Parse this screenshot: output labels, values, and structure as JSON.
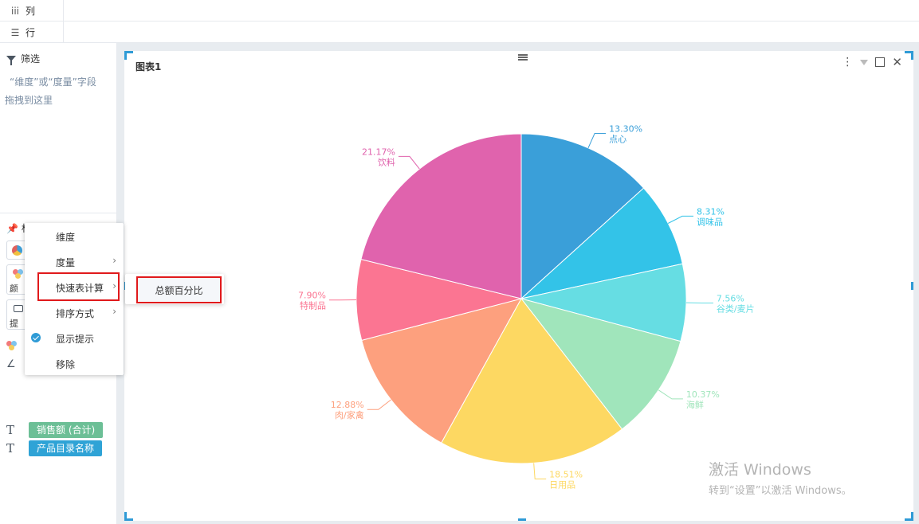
{
  "shelves": {
    "columns": {
      "icon": "iii",
      "label": "列"
    },
    "rows": {
      "icon": "☰",
      "label": "行"
    }
  },
  "filter": {
    "title": "筛选",
    "hint_line1": "“维度”或“度量”字段",
    "hint_line2": "拖拽到这里"
  },
  "marks": {
    "title_fragment": "标",
    "color_sub": "颜",
    "tip_sub": "提",
    "fields": [
      {
        "icon": "T",
        "label": "销售额 (合计)",
        "color": "#6cbf96"
      },
      {
        "icon": "T",
        "label": "产品目录名称",
        "color": "#2fa3d6"
      }
    ]
  },
  "chart": {
    "title": "图表1"
  },
  "context_menu": {
    "items": [
      {
        "label": "维度",
        "submenu": false,
        "checked": false
      },
      {
        "label": "度量",
        "submenu": true,
        "checked": false
      },
      {
        "label": "快速表计算",
        "submenu": true,
        "checked": false
      },
      {
        "label": "排序方式",
        "submenu": true,
        "checked": false
      },
      {
        "label": "显示提示",
        "submenu": false,
        "checked": true
      },
      {
        "label": "移除",
        "submenu": false,
        "checked": false
      }
    ],
    "submenu_item": "总额百分比"
  },
  "chart_data": {
    "type": "pie",
    "title": "",
    "categories": [
      "点心",
      "调味品",
      "谷类/麦片",
      "海鲜",
      "日用品",
      "肉/家禽",
      "特制品",
      "饮料"
    ],
    "values": [
      13.3,
      8.31,
      7.56,
      10.37,
      18.51,
      12.88,
      7.9,
      21.17
    ],
    "labels": [
      "13.30%",
      "8.31%",
      "7.56%",
      "10.37%",
      "18.51%",
      "12.88%",
      "7.90%",
      "21.17%"
    ],
    "colors": [
      "#3a9fd9",
      "#33c3e8",
      "#66dde3",
      "#a0e5bb",
      "#fdd862",
      "#fda07e",
      "#fb7592",
      "#e063ad"
    ]
  },
  "watermark": {
    "line1": "激活 Windows",
    "line2": "转到“设置”以激活 Windows。"
  }
}
